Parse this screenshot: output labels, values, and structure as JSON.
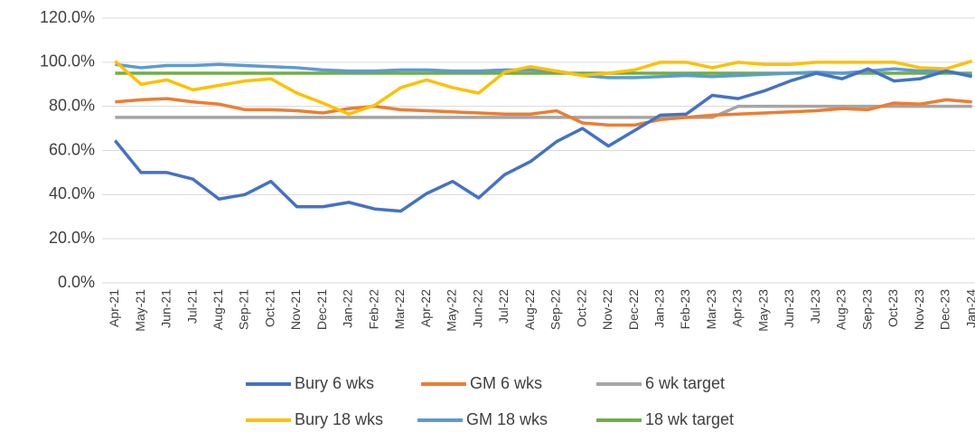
{
  "chart_data": {
    "type": "line",
    "categories": [
      "Apr-21",
      "May-21",
      "Jun-21",
      "Jul-21",
      "Aug-21",
      "Sep-21",
      "Oct-21",
      "Nov-21",
      "Dec-21",
      "Jan-22",
      "Feb-22",
      "Mar-22",
      "Apr-22",
      "May-22",
      "Jun-22",
      "Jul-22",
      "Aug-22",
      "Sep-22",
      "Oct-22",
      "Nov-22",
      "Dec-22",
      "Jan-23",
      "Feb-23",
      "Mar-23",
      "Apr-23",
      "May-23",
      "Jun-23",
      "Jul-23",
      "Aug-23",
      "Sep-23",
      "Oct-23",
      "Nov-23",
      "Dec-23",
      "Jan-24"
    ],
    "series": [
      {
        "name": "Bury 6 wks",
        "color": "#4472c4",
        "values": [
          64.5,
          50,
          50,
          47,
          38,
          40,
          46,
          34.5,
          34.5,
          36.5,
          33.5,
          32.5,
          40.5,
          46,
          38.5,
          49,
          55,
          64,
          70,
          62,
          69,
          76,
          76.5,
          85,
          83.5,
          87,
          91.5,
          95,
          92.5,
          97,
          91.5,
          92.5,
          96,
          93.5
        ]
      },
      {
        "name": "GM 6 wks",
        "color": "#ed7d31",
        "values": [
          82,
          83,
          83.5,
          82,
          81,
          78.5,
          78.5,
          78,
          77,
          79,
          80,
          78.5,
          78,
          77.5,
          77,
          76.5,
          76.5,
          78,
          72.5,
          71.5,
          71.5,
          74,
          75,
          76,
          76.5,
          77,
          77.5,
          78,
          79,
          78.5,
          81.5,
          81,
          83,
          82
        ]
      },
      {
        "name": "6 wk target",
        "color": "#a5a5a5",
        "values": [
          75,
          75,
          75,
          75,
          75,
          75,
          75,
          75,
          75,
          75,
          75,
          75,
          75,
          75,
          75,
          75,
          75,
          75,
          75,
          75,
          75,
          75,
          75,
          75,
          80,
          80,
          80,
          80,
          80,
          80,
          80,
          80,
          80,
          80
        ]
      },
      {
        "name": "Bury 18 wks",
        "color": "#ffc000",
        "values": [
          100.5,
          90,
          92,
          87.5,
          89.5,
          91.5,
          92.5,
          86,
          81.5,
          76.5,
          80.5,
          88.5,
          92,
          88.5,
          86,
          95.5,
          98,
          96,
          94,
          95,
          96.5,
          100,
          100,
          97.5,
          100,
          99,
          99,
          100,
          100,
          100,
          100,
          97.5,
          97,
          100.5
        ]
      },
      {
        "name": "GM 18 wks",
        "color": "#5b9bd5",
        "values": [
          99,
          97.5,
          98.5,
          98.5,
          99,
          98.5,
          98,
          97.5,
          96.5,
          96,
          96,
          96.5,
          96.5,
          96,
          96,
          96.5,
          96.5,
          96,
          94,
          93,
          93,
          93.5,
          94,
          93.5,
          94,
          94.5,
          95,
          95.5,
          95,
          96,
          97,
          96,
          96,
          94
        ]
      },
      {
        "name": "18 wk target",
        "color": "#70ad47",
        "values": [
          95,
          95,
          95,
          95,
          95,
          95,
          95,
          95,
          95,
          95,
          95,
          95,
          95,
          95,
          95,
          95,
          95,
          95,
          95,
          95,
          95,
          95,
          95,
          95,
          95,
          95,
          95,
          95,
          95,
          95,
          95,
          95,
          95,
          95
        ]
      }
    ],
    "ylim": [
      0,
      120
    ],
    "yticks": [
      {
        "value": 0,
        "label": "0.0%"
      },
      {
        "value": 20,
        "label": "20.0%"
      },
      {
        "value": 40,
        "label": "40.0%"
      },
      {
        "value": 60,
        "label": "60.0%"
      },
      {
        "value": 80,
        "label": "80.0%"
      },
      {
        "value": 100,
        "label": "100.0%"
      },
      {
        "value": 120,
        "label": "120.0%"
      }
    ],
    "grid": true,
    "legend": "bottom"
  }
}
